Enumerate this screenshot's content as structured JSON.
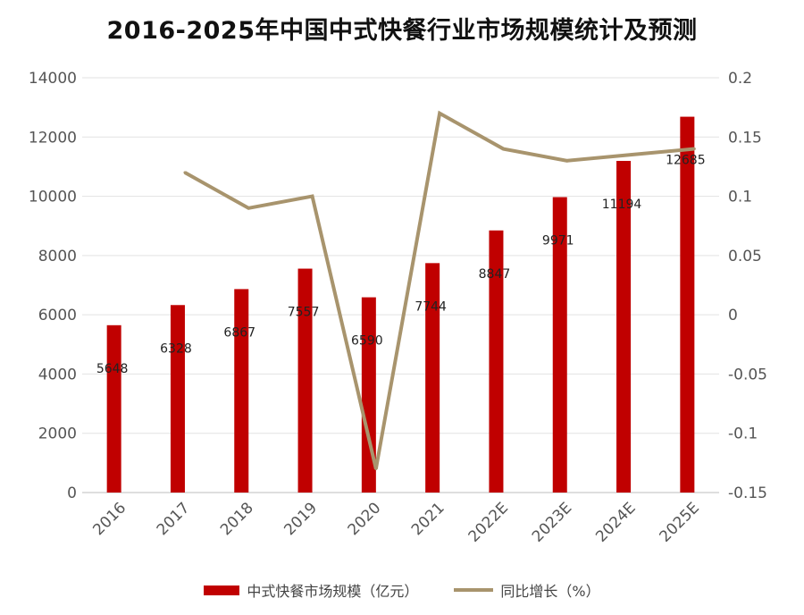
{
  "chart_data": {
    "type": "bar+line",
    "title": "2016-2025年中国中式快餐行业市场规模统计及预测",
    "categories": [
      "2016",
      "2017",
      "2018",
      "2019",
      "2020",
      "2021",
      "2022E",
      "2023E",
      "2024E",
      "2025E"
    ],
    "series": [
      {
        "name": "中式快餐市场规模（亿元）",
        "type": "bar",
        "axis": "left",
        "values": [
          5648,
          6328,
          6867,
          7557,
          6590,
          7744,
          8847,
          9971,
          11194,
          12685
        ],
        "labels": [
          "5648",
          "6328",
          "6867",
          "7557",
          "6590",
          "7744",
          "8847",
          "9971",
          "11194",
          "12685"
        ]
      },
      {
        "name": "同比增长（%）",
        "type": "line",
        "axis": "right",
        "values": [
          null,
          0.12,
          0.09,
          0.1,
          -0.13,
          0.17,
          0.14,
          0.13,
          0.135,
          0.14
        ]
      }
    ],
    "ylim_left": [
      0,
      14000
    ],
    "ylim_right": [
      -0.15,
      0.2
    ],
    "yticks_left": [
      "0",
      "2000",
      "4000",
      "6000",
      "8000",
      "10000",
      "12000",
      "14000"
    ],
    "yticks_right": [
      "-0.15",
      "-0.1",
      "-0.05",
      "0",
      "0.05",
      "0.1",
      "0.15",
      "0.2"
    ],
    "grid": true,
    "colors": {
      "bar": "#c00000",
      "line": "#a8946d"
    }
  },
  "legend": {
    "bar_label": "中式快餐市场规模（亿元）",
    "line_label": "同比增长（%）"
  }
}
